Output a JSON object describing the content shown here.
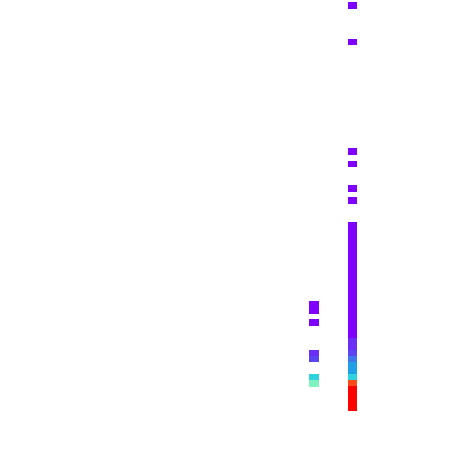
{
  "colors": {
    "background": "#ffffff",
    "violet": "#7f00ff",
    "violet_blue": "#6b2ef6",
    "indigo": "#5a45f0",
    "blue": "#3f78ea",
    "azure": "#1f9fe6",
    "cyan": "#2fd3e0",
    "aquamarine": "#7ff2bf",
    "orange_red": "#ff4a17",
    "red": "#ff0000"
  },
  "columns": [
    {
      "column": "left",
      "cells": [
        {
          "row": 49,
          "color": "#7f00ff"
        },
        {
          "row": 50,
          "color": "#7f00ff"
        },
        {
          "row": 52,
          "color": "#7f00ff"
        },
        {
          "row": 57,
          "color": "#6b2ef6"
        },
        {
          "row": 58,
          "color": "#5a45f0"
        },
        {
          "row": 61,
          "color": "#2fd3e0"
        },
        {
          "row": 62,
          "color": "#7ff2bf"
        }
      ]
    },
    {
      "column": "right",
      "cells": [
        {
          "row": 0,
          "color": "#7f00ff"
        },
        {
          "row": 6,
          "color": "#7f00ff"
        },
        {
          "row": 24,
          "color": "#7f00ff"
        },
        {
          "row": 26,
          "color": "#7f00ff"
        },
        {
          "row": 30,
          "color": "#7f00ff"
        },
        {
          "row": 32,
          "color": "#7f00ff"
        },
        {
          "row": 36,
          "color": "#7f00ff"
        },
        {
          "row": 37,
          "color": "#7f00ff"
        },
        {
          "row": 38,
          "color": "#7f00ff"
        },
        {
          "row": 39,
          "color": "#7f00ff"
        },
        {
          "row": 40,
          "color": "#7f00ff"
        },
        {
          "row": 41,
          "color": "#7f00ff"
        },
        {
          "row": 42,
          "color": "#7f00ff"
        },
        {
          "row": 43,
          "color": "#7f00ff"
        },
        {
          "row": 44,
          "color": "#7f00ff"
        },
        {
          "row": 45,
          "color": "#7f00ff"
        },
        {
          "row": 46,
          "color": "#7f00ff"
        },
        {
          "row": 47,
          "color": "#7f00ff"
        },
        {
          "row": 48,
          "color": "#7f00ff"
        },
        {
          "row": 49,
          "color": "#7f00ff"
        },
        {
          "row": 50,
          "color": "#7f00ff"
        },
        {
          "row": 51,
          "color": "#7f00ff"
        },
        {
          "row": 52,
          "color": "#7f00ff"
        },
        {
          "row": 53,
          "color": "#7f00ff"
        },
        {
          "row": 54,
          "color": "#7f00ff"
        },
        {
          "row": 55,
          "color": "#6b2ef6"
        },
        {
          "row": 56,
          "color": "#6b2ef6"
        },
        {
          "row": 57,
          "color": "#5a45f0"
        },
        {
          "row": 58,
          "color": "#3f78ea"
        },
        {
          "row": 59,
          "color": "#1f9fe6"
        },
        {
          "row": 60,
          "color": "#1f9fe6"
        },
        {
          "row": 61,
          "color": "#2fd3e0"
        },
        {
          "row": 62,
          "color": "#ff4a17"
        },
        {
          "row": 63,
          "color": "#ff0000"
        },
        {
          "row": 64,
          "color": "#ff0000"
        },
        {
          "row": 65,
          "color": "#ff0000"
        },
        {
          "row": 66,
          "color": "#ff0000"
        }
      ]
    }
  ]
}
